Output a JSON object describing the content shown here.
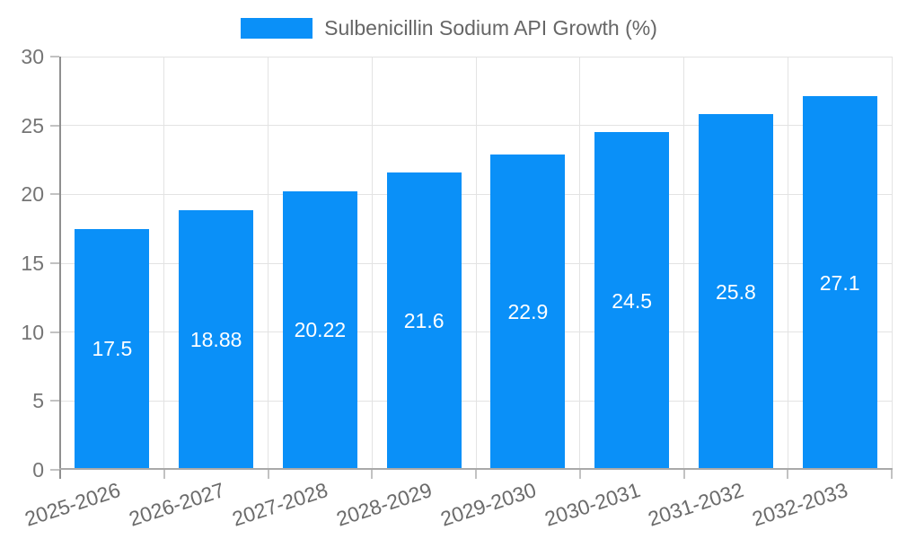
{
  "chart_data": {
    "type": "bar",
    "title": "",
    "legend": [
      "Sulbenicillin Sodium API Growth (%)"
    ],
    "legend_position": "top-center",
    "categories": [
      "2025-2026",
      "2026-2027",
      "2027-2028",
      "2028-2029",
      "2029-2030",
      "2030-2031",
      "2031-2032",
      "2032-2033"
    ],
    "values": [
      17.5,
      18.88,
      20.22,
      21.6,
      22.9,
      24.5,
      25.8,
      27.1
    ],
    "value_labels": [
      "17.5",
      "18.88",
      "20.22",
      "21.6",
      "22.9",
      "24.5",
      "25.8",
      "27.1"
    ],
    "xlabel": "",
    "ylabel": "",
    "ylim": [
      0,
      30
    ],
    "yticks": [
      0,
      5,
      10,
      15,
      20,
      25,
      30
    ],
    "grid": true,
    "x_tick_rotation_deg": -18,
    "bar_color": "#0a90f8",
    "value_label_color": "#ffffff"
  }
}
